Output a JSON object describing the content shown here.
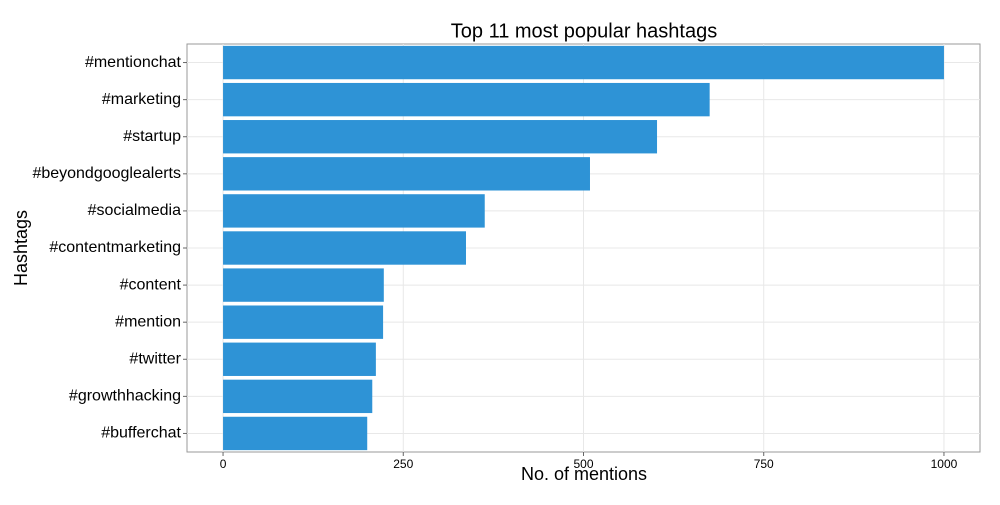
{
  "chart_data": {
    "type": "bar",
    "orientation": "horizontal",
    "title": "Top 11 most popular hashtags",
    "x_label": "No. of mentions",
    "y_label": "Hashtags",
    "categories": [
      "#mentionchat",
      "#marketing",
      "#startup",
      "#beyondgooglealerts",
      "#socialmedia",
      "#contentmarketing",
      "#content",
      "#mention",
      "#twitter",
      "#growthhacking",
      "#bufferchat"
    ],
    "values": [
      1000,
      675,
      602,
      509,
      363,
      337,
      223,
      222,
      212,
      207,
      200
    ],
    "color": "#2e93d6",
    "xlim": [
      -50,
      1050
    ],
    "xticks": [
      0,
      250,
      500,
      750,
      1000
    ],
    "grid": true
  }
}
